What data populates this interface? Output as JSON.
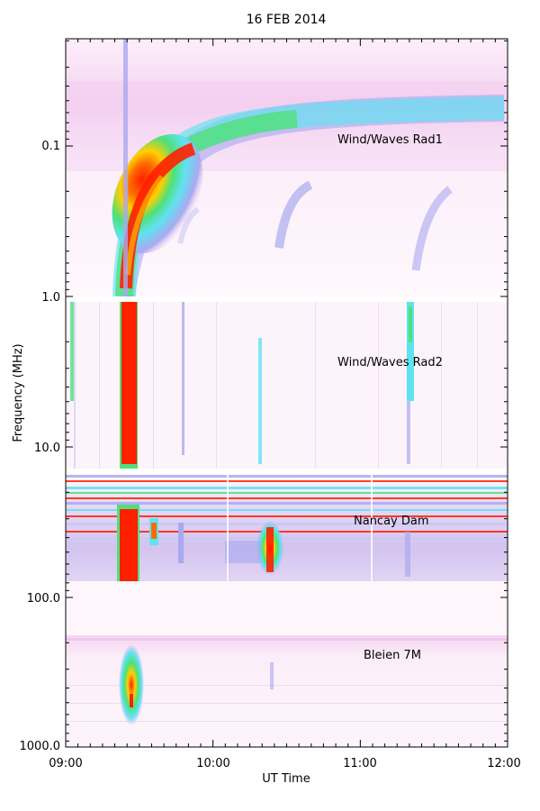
{
  "chart_data": {
    "type": "heatmap",
    "title": "16 FEB 2014",
    "xlabel": "UT Time",
    "ylabel": "Frequency (MHz)",
    "x_ticks": [
      "09:00",
      "10:00",
      "11:00",
      "12:00"
    ],
    "y_ticks": [
      "0.1",
      "1.0",
      "10.0",
      "100.0",
      "1000.0"
    ],
    "y_scale": "log",
    "xlim": [
      "09:00",
      "12:00"
    ],
    "ylim": [
      0.02,
      1000
    ],
    "panels": [
      {
        "label": "Wind/Waves Rad1",
        "freq_range": [
          0.02,
          1.0
        ]
      },
      {
        "label": "Wind/Waves Rad2",
        "freq_range": [
          1.0,
          14
        ]
      },
      {
        "label": "Nancay Dam",
        "freq_range": [
          14,
          80
        ]
      },
      {
        "label": "Bleien 7M",
        "freq_range": [
          180,
          900
        ]
      }
    ],
    "colors": {
      "background": "#fff6fb",
      "low": "#f3d6f0",
      "mid_low": "#a9a9f0",
      "mid": "#5fe3f0",
      "mid_high": "#4fe07a",
      "high": "#ffd000",
      "peak": "#ff2000"
    }
  }
}
